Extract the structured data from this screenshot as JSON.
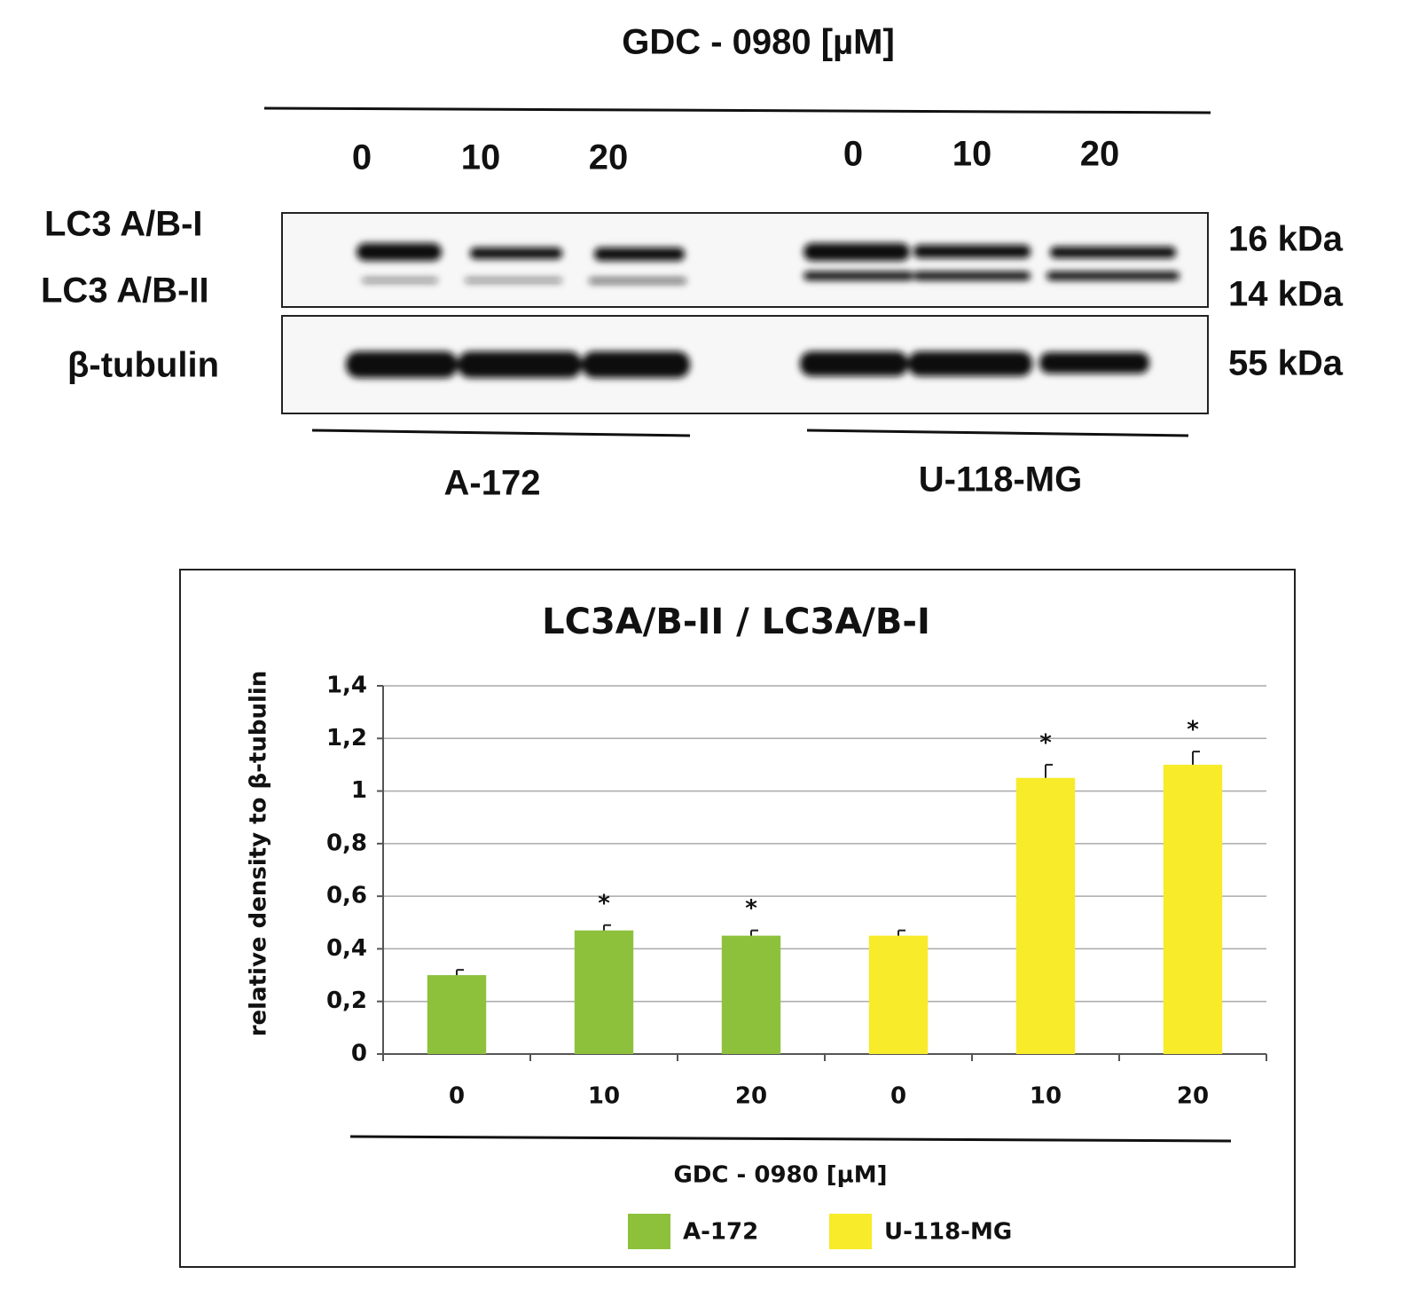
{
  "blot": {
    "title": "GDC - 0980 [µM]",
    "lanes": [
      "0",
      "10",
      "20",
      "0",
      "10",
      "20"
    ],
    "rows": [
      "LC3 A/B-I",
      "LC3 A/B-II",
      "β-tubulin"
    ],
    "weights": [
      "16 kDa",
      "14 kDa",
      "55 kDa"
    ],
    "cell_lines": [
      "A-172",
      "U-118-MG"
    ]
  },
  "chart_data": {
    "type": "bar",
    "title": "LC3A/B-II / LC3A/B-I",
    "y_label": "relative density to β-tubulin",
    "x_label": "GDC - 0980 [µM]",
    "categories": [
      "0",
      "10",
      "20",
      "0",
      "10",
      "20"
    ],
    "series": [
      {
        "name": "A-172",
        "color": "#8dc13c",
        "values": [
          0.3,
          0.47,
          0.45,
          null,
          null,
          null
        ],
        "errors": [
          0.02,
          0.02,
          0.02,
          null,
          null,
          null
        ]
      },
      {
        "name": "U-118-MG",
        "color": "#f7eb2a",
        "values": [
          null,
          null,
          null,
          0.45,
          1.05,
          1.1
        ],
        "errors": [
          null,
          null,
          null,
          0.02,
          0.05,
          0.05
        ]
      }
    ],
    "significance": [
      null,
      "*",
      "*",
      null,
      "*",
      "*"
    ],
    "ylim": [
      0,
      1.4
    ],
    "yticks": [
      0,
      {
        "value": 0.2,
        "label": "0,2"
      },
      {
        "value": 0.4,
        "label": "0,4"
      },
      {
        "value": 0.6,
        "label": "0,6"
      },
      {
        "value": 0.8,
        "label": "0,8"
      },
      1,
      {
        "value": 1.2,
        "label": "1,2"
      },
      {
        "value": 1.4,
        "label": "1,4"
      }
    ],
    "grid": true
  }
}
